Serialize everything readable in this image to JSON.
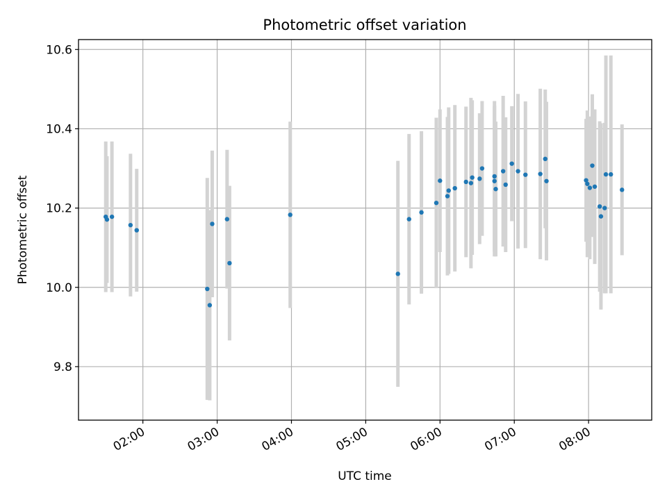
{
  "chart_data": {
    "type": "scatter",
    "title": "Photometric offset variation",
    "xlabel": "UTC time",
    "ylabel": "Photometric offset",
    "x_tick_labels": [
      "02:00",
      "03:00",
      "04:00",
      "05:00",
      "06:00",
      "07:00",
      "08:00"
    ],
    "y_tick_labels": [
      "9.8",
      "10.0",
      "10.2",
      "10.4",
      "10.6"
    ],
    "y_ticks": [
      9.8,
      10.0,
      10.2,
      10.4,
      10.6
    ],
    "xlim": [
      "01:08",
      "08:51"
    ],
    "ylim": [
      9.665,
      10.625
    ],
    "grid": true,
    "colors": {
      "points": "#1f77b4",
      "errorbars": "#d3d3d3"
    },
    "series": [
      {
        "x": [
          "01:30",
          "01:31",
          "01:35",
          "01:50",
          "01:55",
          "02:52",
          "02:54",
          "02:56",
          "03:08",
          "03:10",
          "03:59",
          "05:26",
          "05:35",
          "05:45",
          "05:57",
          "06:00",
          "06:06",
          "06:07",
          "06:12",
          "06:21",
          "06:25",
          "06:26",
          "06:32",
          "06:34",
          "06:44",
          "06:44",
          "06:45",
          "06:51",
          "06:53",
          "06:58",
          "07:03",
          "07:09",
          "07:21",
          "07:25",
          "07:26",
          "07:58",
          "07:59",
          "08:01",
          "08:03",
          "08:05",
          "08:09",
          "08:10",
          "08:13",
          "08:14",
          "08:18",
          "08:27"
        ],
        "y": [
          10.178,
          10.171,
          10.178,
          10.157,
          10.144,
          9.996,
          9.955,
          10.16,
          10.172,
          10.061,
          10.183,
          10.034,
          10.172,
          10.189,
          10.213,
          10.269,
          10.23,
          10.244,
          10.25,
          10.266,
          10.263,
          10.277,
          10.274,
          10.3,
          10.28,
          10.268,
          10.248,
          10.293,
          10.259,
          10.312,
          10.293,
          10.284,
          10.286,
          10.324,
          10.268,
          10.27,
          10.261,
          10.251,
          10.307,
          10.254,
          10.204,
          10.179,
          10.2,
          10.285,
          10.285,
          10.246
        ],
        "yerr": [
          0.19,
          0.16,
          0.19,
          0.18,
          0.155,
          0.28,
          0.24,
          0.185,
          0.175,
          0.195,
          0.235,
          0.285,
          0.215,
          0.205,
          0.215,
          0.18,
          0.2,
          0.21,
          0.21,
          0.19,
          0.215,
          0.195,
          0.165,
          0.17,
          0.19,
          0.19,
          0.17,
          0.19,
          0.17,
          0.145,
          0.195,
          0.185,
          0.215,
          0.175,
          0.2,
          0.155,
          0.185,
          0.18,
          0.18,
          0.195,
          0.215,
          0.235,
          0.215,
          0.3,
          0.3,
          0.165
        ]
      }
    ]
  }
}
